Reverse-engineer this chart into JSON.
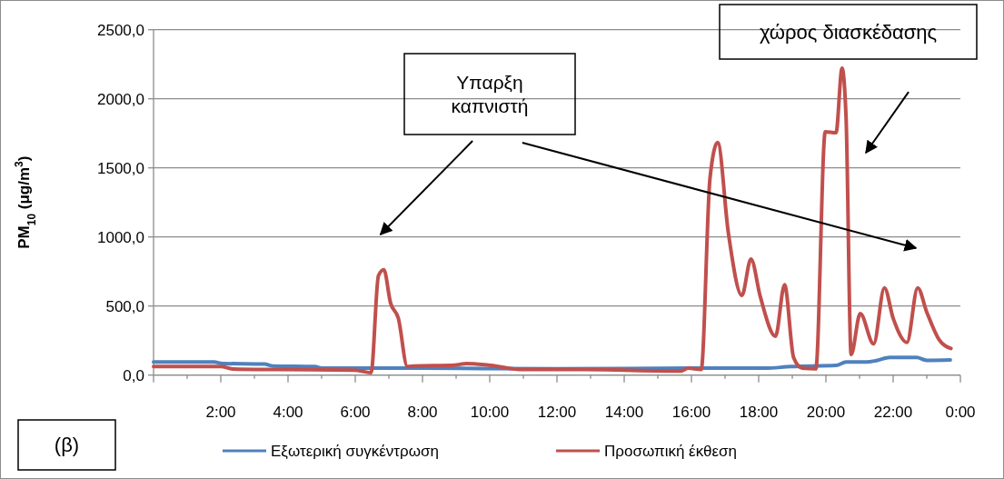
{
  "chart_data": {
    "type": "line",
    "ylabel": "PM$_{10}$ (μg/m$^{3}$)",
    "xlim": [
      0,
      24
    ],
    "xticks": [
      {
        "value": 0,
        "label": null
      },
      {
        "value": 1,
        "label": null
      },
      {
        "value": 2,
        "label": "2:00"
      },
      {
        "value": 3,
        "label": null
      },
      {
        "value": 4,
        "label": "4:00"
      },
      {
        "value": 5,
        "label": null
      },
      {
        "value": 6,
        "label": "6:00"
      },
      {
        "value": 7,
        "label": null
      },
      {
        "value": 8,
        "label": "8:00"
      },
      {
        "value": 9,
        "label": null
      },
      {
        "value": 10,
        "label": "10:00"
      },
      {
        "value": 11,
        "label": null
      },
      {
        "value": 12,
        "label": "12:00"
      },
      {
        "value": 13,
        "label": null
      },
      {
        "value": 14,
        "label": "14:00"
      },
      {
        "value": 15,
        "label": null
      },
      {
        "value": 16,
        "label": "16:00"
      },
      {
        "value": 17,
        "label": null
      },
      {
        "value": 18,
        "label": "18:00"
      },
      {
        "value": 19,
        "label": null
      },
      {
        "value": 20,
        "label": "20:00"
      },
      {
        "value": 21,
        "label": null
      },
      {
        "value": 22,
        "label": "22:00"
      },
      {
        "value": 23,
        "label": null
      },
      {
        "value": 24,
        "label": "0:00"
      }
    ],
    "ylim": [
      0,
      2500
    ],
    "yticks": [
      {
        "value": 0,
        "label": "0,0"
      },
      {
        "value": 500,
        "label": "500,0"
      },
      {
        "value": 1000,
        "label": "1000,0"
      },
      {
        "value": 1500,
        "label": "1500,0"
      },
      {
        "value": 2000,
        "label": "2000,0"
      },
      {
        "value": 2500,
        "label": "2500,0"
      }
    ],
    "grid": "y",
    "legend": "bottom",
    "marker": "none",
    "line_style": "solid",
    "series": [
      {
        "name": "Εξωτερική συγκέντρωση",
        "color": "#4f81bd",
        "x": [
          0,
          1.8,
          2.05,
          3.3,
          3.55,
          4.8,
          5.0,
          8,
          12,
          16,
          18.2,
          18.95,
          20.3,
          20.6,
          21.2,
          21.5,
          21.9,
          22.7,
          23.0,
          23.7
        ],
        "values": [
          95,
          95,
          84,
          80,
          66,
          62,
          51,
          50,
          45,
          50,
          50,
          62,
          70,
          95,
          95,
          105,
          128,
          128,
          107,
          110
        ]
      },
      {
        "name": "Προσωπική έκθεση",
        "color": "#c0504d",
        "x": [
          0,
          2.0,
          2.37,
          3.7,
          5.97,
          6.47,
          6.69,
          6.85,
          7.05,
          7.28,
          7.55,
          7.75,
          8.95,
          9.3,
          9.97,
          11.0,
          12.3,
          12.8,
          15.7,
          15.9,
          16.29,
          16.55,
          16.78,
          17.1,
          17.5,
          17.77,
          18.05,
          18.5,
          18.77,
          19.04,
          19.3,
          19.7,
          19.98,
          20.3,
          20.48,
          20.6,
          20.75,
          21.02,
          21.42,
          21.74,
          22.0,
          22.41,
          22.73,
          23.0,
          23.36,
          23.72
        ],
        "values": [
          62,
          62,
          44,
          40,
          36,
          18,
          720,
          763,
          522,
          412,
          62,
          65,
          72,
          84,
          72,
          40,
          40,
          40,
          30,
          50,
          40,
          1421,
          1684,
          1026,
          577,
          840,
          566,
          281,
          654,
          127,
          50,
          45,
          1761,
          1754,
          2222,
          1860,
          149,
          445,
          226,
          632,
          412,
          237,
          632,
          456,
          259,
          193
        ]
      }
    ],
    "annotations": [
      "Υπαρξη\nκαπνιστή",
      "χώρος διασκέδασης",
      "(β)"
    ]
  }
}
